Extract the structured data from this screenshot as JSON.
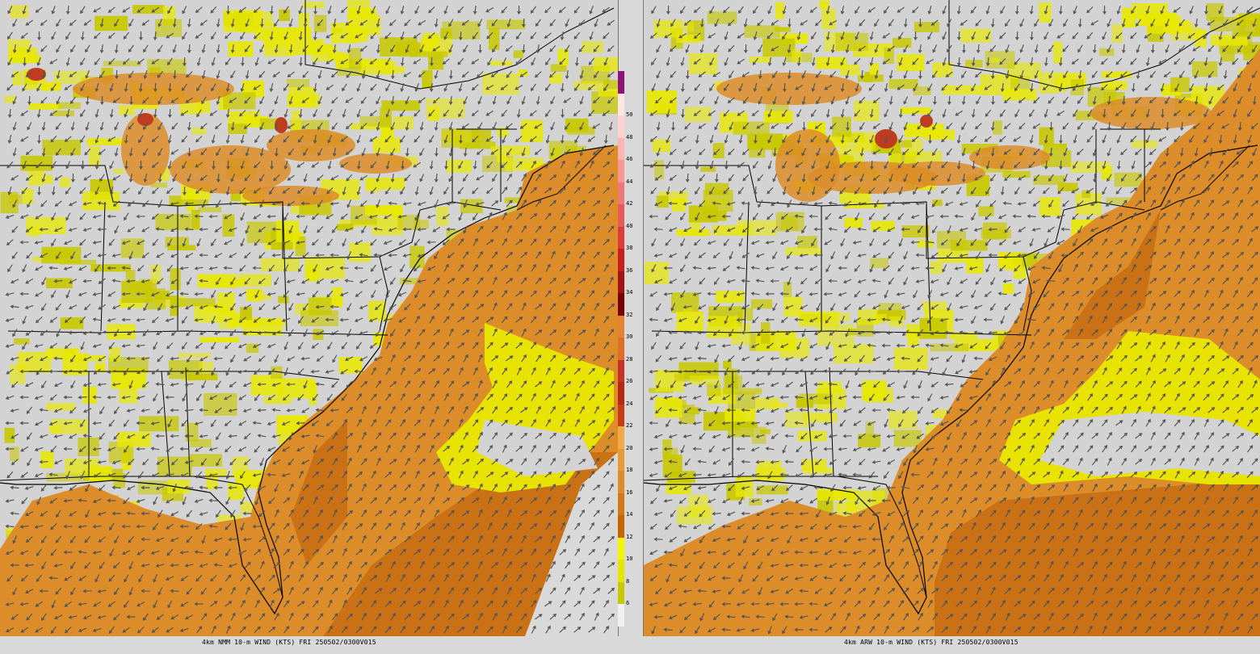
{
  "panels": [
    {
      "id": "left",
      "model": "4km NMM",
      "caption": "4km NMM 10-m WIND (KTS) FRI 250502/0300V015"
    },
    {
      "id": "right",
      "model": "4km ARW",
      "caption": "4km ARW 10-m WIND (KTS) FRI 250502/0300V015"
    }
  ],
  "colorbar": {
    "unit": "KTS",
    "levels": [
      {
        "label": "",
        "color": "#f0f0f0"
      },
      {
        "label": "6",
        "color": "#c8c800"
      },
      {
        "label": "8",
        "color": "#e6e600"
      },
      {
        "label": "10",
        "color": "#f5f500"
      },
      {
        "label": "12",
        "color": "#c86400"
      },
      {
        "label": "14",
        "color": "#d27819"
      },
      {
        "label": "16",
        "color": "#dc8c28"
      },
      {
        "label": "18",
        "color": "#e69b37"
      },
      {
        "label": "20",
        "color": "#f0aa46"
      },
      {
        "label": "22",
        "color": "#c83c14"
      },
      {
        "label": "24",
        "color": "#b42814"
      },
      {
        "label": "26",
        "color": "#c83228"
      },
      {
        "label": "28",
        "color": "#dc6e28"
      },
      {
        "label": "30",
        "color": "#e68232"
      },
      {
        "label": "32",
        "color": "#780000"
      },
      {
        "label": "34",
        "color": "#a01414"
      },
      {
        "label": "36",
        "color": "#c81e1e"
      },
      {
        "label": "38",
        "color": "#dc3c3c"
      },
      {
        "label": "40",
        "color": "#e65a5a"
      },
      {
        "label": "42",
        "color": "#f07878"
      },
      {
        "label": "44",
        "color": "#fa9696"
      },
      {
        "label": "46",
        "color": "#ffb4b4"
      },
      {
        "label": "48",
        "color": "#ffd2d2"
      },
      {
        "label": "50",
        "color": "#ffe6e6"
      },
      {
        "label": "",
        "color": "#8c1478"
      }
    ]
  },
  "colors": {
    "land": "#d3d3d3",
    "light": "#e8e800",
    "mid": "#c8c800",
    "orange": "#dc8c28",
    "dark": "#c86e14",
    "red": "#c03c1e",
    "arrow": "#555555",
    "border": "#000000"
  }
}
